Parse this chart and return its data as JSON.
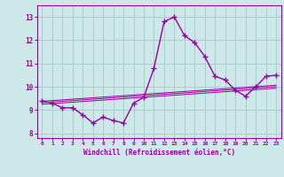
{
  "x": [
    0,
    1,
    2,
    3,
    4,
    5,
    6,
    7,
    8,
    9,
    10,
    11,
    12,
    13,
    14,
    15,
    16,
    17,
    18,
    19,
    20,
    21,
    22,
    23
  ],
  "y_main": [
    9.4,
    9.3,
    9.1,
    9.1,
    8.8,
    8.45,
    8.7,
    8.55,
    8.45,
    9.3,
    9.55,
    10.8,
    12.8,
    13.0,
    12.2,
    11.9,
    11.3,
    10.45,
    10.3,
    9.85,
    9.6,
    10.0,
    10.45,
    10.5
  ],
  "y_trend1": [
    9.38,
    9.41,
    9.44,
    9.47,
    9.5,
    9.53,
    9.56,
    9.59,
    9.62,
    9.65,
    9.68,
    9.71,
    9.74,
    9.77,
    9.8,
    9.83,
    9.86,
    9.89,
    9.92,
    9.95,
    9.98,
    10.01,
    10.04,
    10.07
  ],
  "y_trend2": [
    9.32,
    9.35,
    9.38,
    9.41,
    9.44,
    9.47,
    9.5,
    9.53,
    9.56,
    9.59,
    9.62,
    9.65,
    9.68,
    9.71,
    9.74,
    9.77,
    9.8,
    9.83,
    9.86,
    9.89,
    9.92,
    9.95,
    9.98,
    10.01
  ],
  "y_trend3": [
    9.25,
    9.28,
    9.31,
    9.34,
    9.37,
    9.4,
    9.43,
    9.46,
    9.49,
    9.52,
    9.55,
    9.58,
    9.61,
    9.64,
    9.67,
    9.7,
    9.73,
    9.76,
    9.79,
    9.82,
    9.85,
    9.88,
    9.91,
    9.94
  ],
  "line_color": "#990099",
  "bg_color": "#cce8e8",
  "grid_color": "#aacccc",
  "xlabel": "Windchill (Refroidissement éolien,°C)",
  "ylim": [
    7.8,
    13.5
  ],
  "xlim": [
    -0.5,
    23.5
  ],
  "yticks": [
    8,
    9,
    10,
    11,
    12,
    13
  ],
  "xticks": [
    0,
    1,
    2,
    3,
    4,
    5,
    6,
    7,
    8,
    9,
    10,
    11,
    12,
    13,
    14,
    15,
    16,
    17,
    18,
    19,
    20,
    21,
    22,
    23
  ],
  "marker": "+",
  "markersize": 4,
  "linewidth": 1.0
}
